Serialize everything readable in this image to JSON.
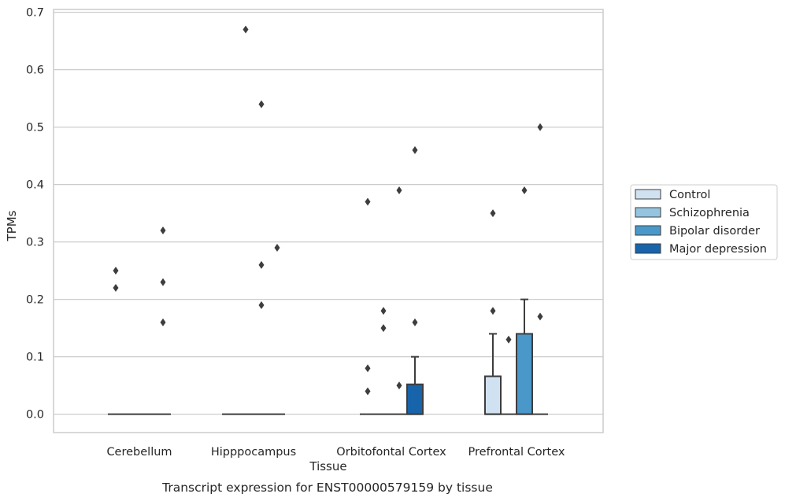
{
  "chart_data": {
    "type": "box",
    "title": "",
    "caption": "Transcript expression for ENST00000579159 by tissue",
    "xlabel": "Tissue",
    "ylabel": "TPMs",
    "ylim": [
      -0.032,
      0.705
    ],
    "yticks": [
      "0.0",
      "0.1",
      "0.2",
      "0.3",
      "0.4",
      "0.5",
      "0.6",
      "0.7"
    ],
    "grid": true,
    "legend_position": "right",
    "categories": [
      "Cerebellum",
      "Hipppocampus",
      "Orbitofontal Cortex",
      "Prefrontal Cortex"
    ],
    "series": [
      {
        "name": "Control",
        "color": "#d0e1f2",
        "boxes": [
          {
            "q1": 0,
            "median": 0,
            "q3": 0,
            "whislo": 0,
            "whishi": 0,
            "fliers": [
              0.22,
              0.25
            ]
          },
          {
            "q1": 0,
            "median": 0,
            "q3": 0,
            "whislo": 0,
            "whishi": 0,
            "fliers": []
          },
          {
            "q1": 0,
            "median": 0,
            "q3": 0,
            "whislo": 0,
            "whishi": 0,
            "fliers": [
              0.04,
              0.08,
              0.37
            ]
          },
          {
            "q1": 0,
            "median": 0,
            "q3": 0.066,
            "whislo": 0,
            "whishi": 0.14,
            "fliers": [
              0.18,
              0.35
            ]
          }
        ]
      },
      {
        "name": "Schizophrenia",
        "color": "#94c4df",
        "boxes": [
          {
            "q1": 0,
            "median": 0,
            "q3": 0,
            "whislo": 0,
            "whishi": 0,
            "fliers": []
          },
          {
            "q1": 0,
            "median": 0,
            "q3": 0,
            "whislo": 0,
            "whishi": 0,
            "fliers": [
              0.67
            ]
          },
          {
            "q1": 0,
            "median": 0,
            "q3": 0,
            "whislo": 0,
            "whishi": 0,
            "fliers": [
              0.15,
              0.18
            ]
          },
          {
            "q1": 0,
            "median": 0,
            "q3": 0,
            "whislo": 0,
            "whishi": 0,
            "fliers": [
              0.13
            ]
          }
        ]
      },
      {
        "name": "Bipolar disorder",
        "color": "#4a98c9",
        "boxes": [
          {
            "q1": 0,
            "median": 0,
            "q3": 0,
            "whislo": 0,
            "whishi": 0,
            "fliers": []
          },
          {
            "q1": 0,
            "median": 0,
            "q3": 0,
            "whislo": 0,
            "whishi": 0,
            "fliers": [
              0.19,
              0.26,
              0.54
            ]
          },
          {
            "q1": 0,
            "median": 0,
            "q3": 0,
            "whislo": 0,
            "whishi": 0,
            "fliers": [
              0.05,
              0.39
            ]
          },
          {
            "q1": 0,
            "median": 0,
            "q3": 0.14,
            "whislo": 0,
            "whishi": 0.2,
            "fliers": [
              0.39
            ]
          }
        ]
      },
      {
        "name": "Major depression",
        "color": "#1764ab",
        "boxes": [
          {
            "q1": 0,
            "median": 0,
            "q3": 0,
            "whislo": 0,
            "whishi": 0,
            "fliers": [
              0.16,
              0.23,
              0.32
            ]
          },
          {
            "q1": 0,
            "median": 0,
            "q3": 0,
            "whislo": 0,
            "whishi": 0,
            "fliers": [
              0.29
            ]
          },
          {
            "q1": 0,
            "median": 0,
            "q3": 0.052,
            "whislo": 0,
            "whishi": 0.1,
            "fliers": [
              0.16,
              0.46
            ]
          },
          {
            "q1": 0,
            "median": 0,
            "q3": 0,
            "whislo": 0,
            "whishi": 0,
            "fliers": [
              0.17,
              0.5
            ]
          }
        ]
      }
    ]
  }
}
